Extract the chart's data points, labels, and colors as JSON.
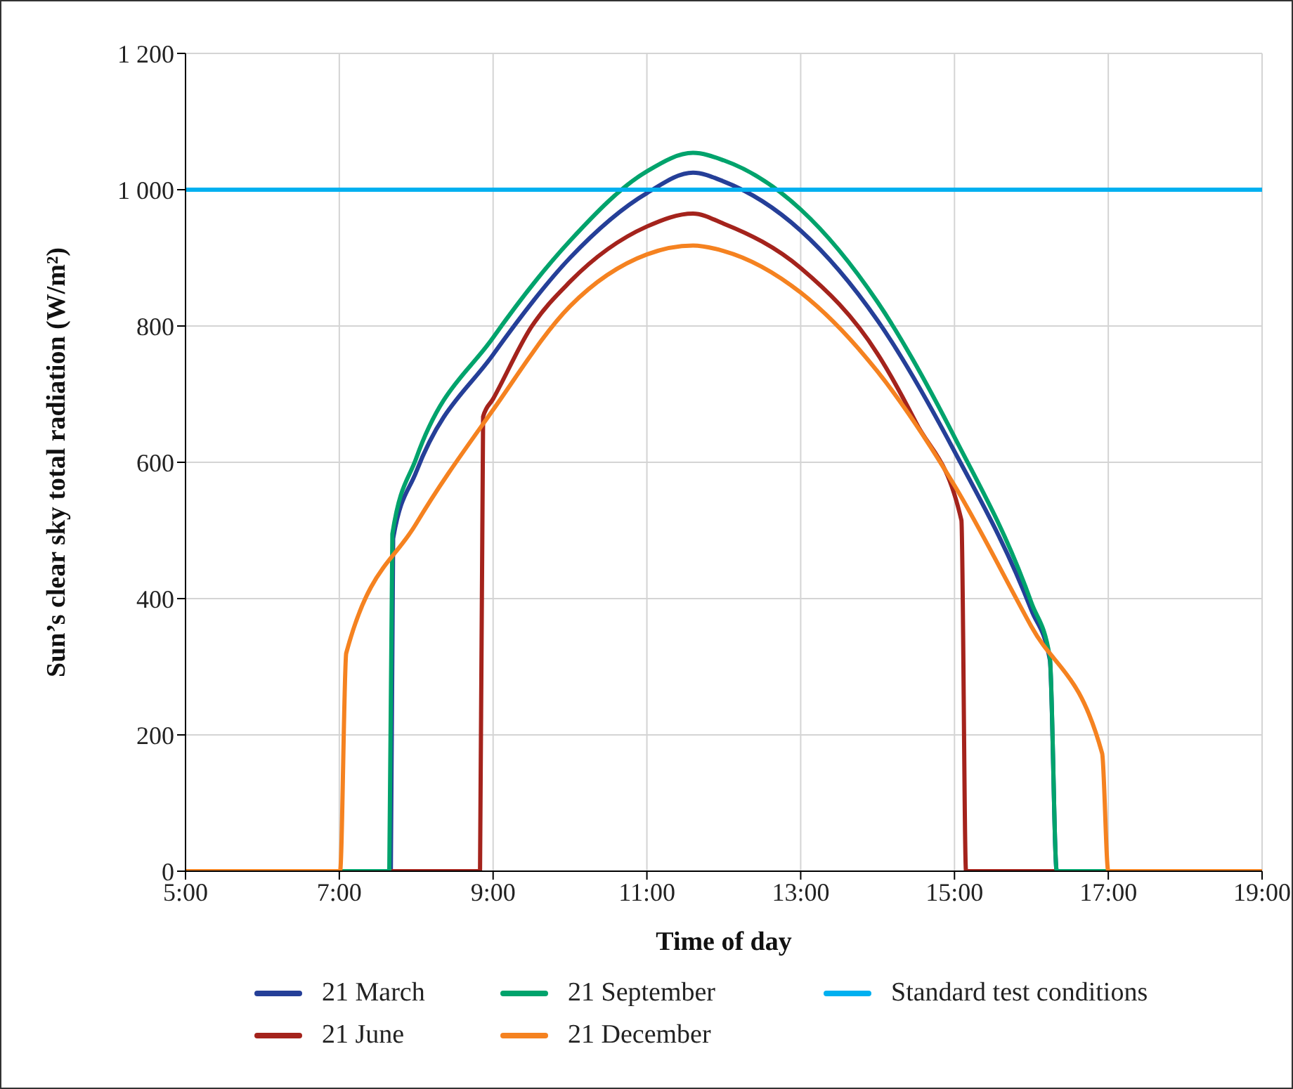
{
  "chart_data": {
    "type": "line",
    "xlabel": "Time of day",
    "ylabel": "Sun’s clear sky total radiation (W/m²)",
    "xlim": [
      5,
      19
    ],
    "xticks": [
      {
        "value": 5,
        "label": "5:00"
      },
      {
        "value": 7,
        "label": "7:00"
      },
      {
        "value": 9,
        "label": "9:00"
      },
      {
        "value": 11,
        "label": "11:00"
      },
      {
        "value": 13,
        "label": "13:00"
      },
      {
        "value": 15,
        "label": "15:00"
      },
      {
        "value": 17,
        "label": "17:00"
      },
      {
        "value": 19,
        "label": "19:00"
      }
    ],
    "ylim": [
      0,
      1200
    ],
    "yticks": [
      0,
      200,
      400,
      600,
      800,
      {
        "value": 1000,
        "label": "1 000"
      },
      {
        "value": 1200,
        "label": "1 200"
      }
    ],
    "grid": true,
    "legend": "bottom",
    "series": [
      {
        "name": "21 March",
        "color": "#253f98",
        "x": [
          5,
          7.67,
          7.7,
          8,
          9,
          10,
          11,
          11.6,
          12,
          13,
          14,
          15,
          16,
          16.24,
          16.33,
          19
        ],
        "values": [
          0,
          0,
          488,
          586,
          758,
          900,
          995,
          1025,
          1012,
          940,
          808,
          616,
          383,
          310,
          0,
          0
        ]
      },
      {
        "name": "21 June",
        "color": "#a4231c",
        "x": [
          5,
          8.83,
          8.87,
          9,
          9.5,
          10,
          11,
          11.6,
          12,
          13,
          14,
          14.5,
          15.09,
          15.15,
          19
        ],
        "values": [
          0,
          0,
          667,
          693,
          799,
          865,
          946,
          965,
          950,
          885,
          759,
          658,
          515,
          0,
          0
        ]
      },
      {
        "name": "21 September",
        "color": "#00a36c",
        "x": [
          5,
          7.65,
          7.69,
          8,
          9,
          10,
          11,
          11.6,
          12,
          13,
          14,
          15,
          16,
          16.24,
          16.33,
          19
        ],
        "values": [
          0,
          0,
          495,
          606,
          783,
          925,
          1027,
          1054,
          1043,
          971,
          835,
          637,
          394,
          314,
          0,
          0
        ]
      },
      {
        "name": "21 December",
        "color": "#f58220",
        "x": [
          5,
          7.01,
          7.09,
          8,
          9,
          10,
          11,
          11.6,
          12,
          13,
          14,
          15,
          16,
          16.92,
          17,
          19
        ],
        "values": [
          0,
          0,
          320,
          510,
          677,
          829,
          905,
          918,
          910,
          849,
          733,
          566,
          359,
          173,
          0,
          0
        ]
      },
      {
        "name": "Standard test conditions",
        "color": "#00b0f0",
        "x": [
          5,
          19
        ],
        "values": [
          1000,
          1000
        ]
      }
    ]
  }
}
